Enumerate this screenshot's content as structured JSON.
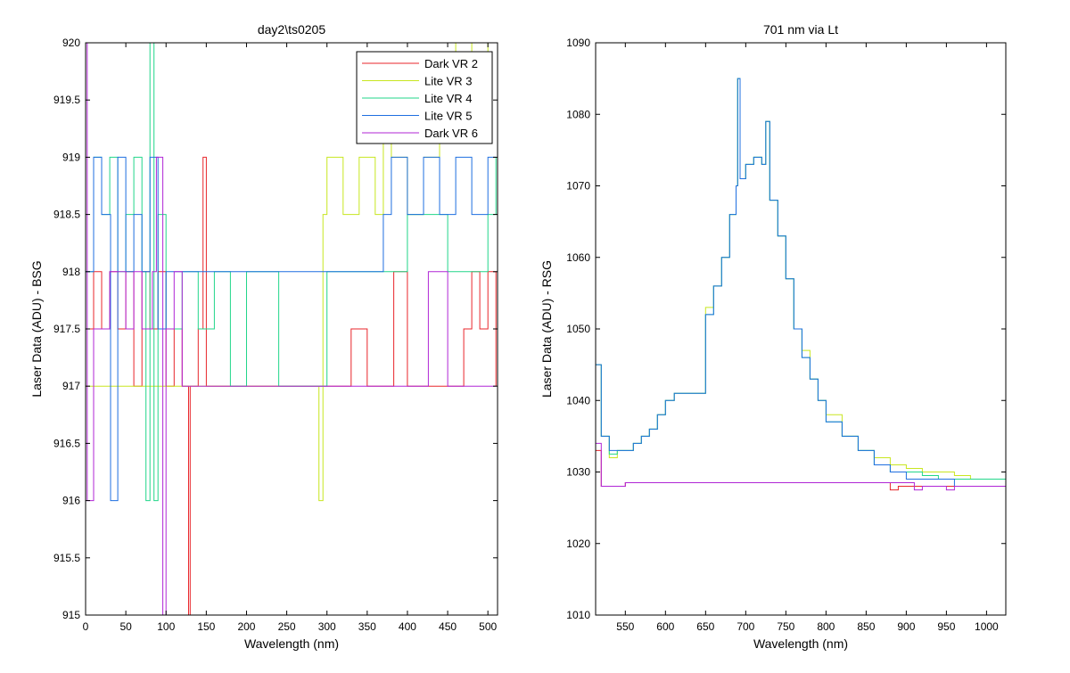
{
  "window": {
    "background": "#ffffff"
  },
  "chart_data": [
    {
      "type": "line",
      "title": "day2\\ts0205",
      "xlabel": "Wavelength (nm)",
      "ylabel": "Laser Data (ADU) - BSG",
      "xlim": [
        0,
        512
      ],
      "ylim": [
        915,
        920
      ],
      "xticks": [
        0,
        50,
        100,
        150,
        200,
        250,
        300,
        350,
        400,
        450,
        500
      ],
      "yticks": [
        915,
        915.5,
        916,
        916.5,
        917,
        917.5,
        918,
        918.5,
        919,
        919.5,
        920
      ],
      "legend_position": "top-right",
      "grid": false,
      "series": [
        {
          "name": "Dark VR 2",
          "color": "#e8262b",
          "x": [
            0,
            10,
            20,
            30,
            40,
            50,
            60,
            70,
            80,
            90,
            100,
            110,
            120,
            128,
            130,
            140,
            146,
            150,
            200,
            250,
            300,
            330,
            350,
            383,
            400,
            450,
            470,
            480,
            490,
            500,
            510
          ],
          "y": [
            917.5,
            918,
            917.5,
            918,
            917.5,
            918,
            917,
            918,
            917.5,
            918,
            917,
            917.5,
            917,
            915,
            917,
            917.5,
            919,
            917,
            917,
            917,
            917,
            917.5,
            917,
            918,
            917,
            917,
            917.5,
            918,
            917.5,
            918,
            917
          ]
        },
        {
          "name": "Lite VR 3",
          "color": "#c8e620",
          "x": [
            0,
            50,
            100,
            150,
            200,
            250,
            280,
            290,
            295,
            300,
            320,
            340,
            360,
            370,
            380,
            400,
            420,
            440,
            460,
            480,
            500,
            510
          ],
          "y": [
            917,
            917,
            917,
            917,
            917,
            917,
            917,
            916,
            918.5,
            919,
            918.5,
            919,
            918.5,
            919.5,
            919,
            918.5,
            919,
            919.5,
            920,
            919.5,
            920,
            920
          ]
        },
        {
          "name": "Lite VR 4",
          "color": "#22d68a",
          "x": [
            0,
            10,
            20,
            30,
            40,
            50,
            60,
            70,
            75,
            80,
            85,
            90,
            100,
            120,
            140,
            160,
            180,
            200,
            240,
            300,
            350,
            400,
            450,
            500,
            510
          ],
          "y": [
            918,
            919,
            918.5,
            919,
            918,
            918.5,
            919,
            918,
            916,
            920,
            916,
            918.5,
            917.5,
            918,
            917.5,
            918,
            917,
            918,
            917,
            918,
            918,
            918.5,
            918,
            918.5,
            919
          ]
        },
        {
          "name": "Lite VR 5",
          "color": "#1f6fe0",
          "x": [
            0,
            10,
            20,
            31,
            40,
            50,
            60,
            70,
            80,
            90,
            100,
            150,
            200,
            250,
            300,
            350,
            370,
            380,
            400,
            420,
            440,
            460,
            480,
            500,
            510
          ],
          "y": [
            918,
            919,
            918.5,
            916,
            919,
            918,
            918.5,
            918,
            919,
            917.5,
            918,
            918,
            918,
            918,
            918,
            918,
            918.5,
            919,
            918.5,
            919,
            918.5,
            919,
            918.5,
            919,
            919
          ]
        },
        {
          "name": "Dark VR 6",
          "color": "#b026d6",
          "x": [
            0,
            2,
            10,
            30,
            50,
            60,
            70,
            83,
            88,
            96,
            100,
            110,
            120,
            150,
            200,
            250,
            300,
            350,
            400,
            426,
            450,
            500,
            510
          ],
          "y": [
            920,
            916,
            917.5,
            918,
            917.5,
            918,
            917.5,
            918,
            919,
            915,
            917.5,
            918,
            917,
            917,
            917,
            917,
            917,
            917,
            917,
            918,
            917,
            917,
            917
          ]
        }
      ]
    },
    {
      "type": "line",
      "title": "701 nm via Lt",
      "xlabel": "Wavelength (nm)",
      "ylabel": "Laser Data (ADU) - RSG",
      "xlim": [
        513,
        1024
      ],
      "ylim": [
        1010,
        1090
      ],
      "xticks": [
        550,
        600,
        650,
        700,
        750,
        800,
        850,
        900,
        950,
        1000
      ],
      "yticks": [
        1010,
        1020,
        1030,
        1040,
        1050,
        1060,
        1070,
        1080,
        1090
      ],
      "grid": false,
      "series": [
        {
          "name": "Dark VR 2",
          "color": "#e8262b",
          "x": [
            513,
            520,
            550,
            600,
            650,
            700,
            750,
            800,
            850,
            880,
            890,
            900,
            950,
            1000,
            1024
          ],
          "y": [
            1033,
            1028,
            1028.5,
            1028.5,
            1028.5,
            1028.5,
            1028.5,
            1028.5,
            1028.5,
            1027.5,
            1028,
            1028,
            1028,
            1028,
            1028
          ]
        },
        {
          "name": "Lite VR 3",
          "color": "#c8e620",
          "x": [
            513,
            520,
            530,
            540,
            550,
            560,
            570,
            580,
            590,
            600,
            611,
            650,
            660,
            670,
            680,
            688,
            690,
            693,
            700,
            710,
            720,
            725,
            730,
            740,
            750,
            760,
            770,
            780,
            790,
            800,
            820,
            840,
            860,
            880,
            900,
            920,
            940,
            960,
            980,
            1000,
            1024
          ],
          "y": [
            1045,
            1035,
            1032,
            1033,
            1033,
            1034,
            1035,
            1036,
            1038,
            1040,
            1041,
            1053,
            1056,
            1060,
            1066,
            1070,
            1085,
            1071,
            1073,
            1074,
            1073,
            1079,
            1068,
            1063,
            1057,
            1050,
            1047,
            1043,
            1040,
            1038,
            1035,
            1033,
            1032,
            1031,
            1030.5,
            1030,
            1030,
            1029.5,
            1029,
            1029,
            1029
          ]
        },
        {
          "name": "Lite VR 4",
          "color": "#22d68a",
          "x": [
            513,
            520,
            530,
            540,
            550,
            560,
            570,
            580,
            590,
            600,
            611,
            650,
            660,
            670,
            680,
            688,
            690,
            693,
            700,
            710,
            720,
            725,
            730,
            740,
            750,
            760,
            770,
            780,
            790,
            800,
            820,
            840,
            860,
            880,
            900,
            920,
            940,
            960,
            980,
            1000,
            1024
          ],
          "y": [
            1045,
            1035,
            1032.5,
            1033,
            1033,
            1034,
            1035,
            1036,
            1038,
            1040,
            1041,
            1052,
            1056,
            1060,
            1066,
            1070,
            1085,
            1071,
            1073,
            1074,
            1073,
            1079,
            1068,
            1063,
            1057,
            1050,
            1046,
            1043,
            1040,
            1037,
            1035,
            1033,
            1031,
            1030,
            1030,
            1029.5,
            1029,
            1029,
            1029,
            1029,
            1028.5
          ]
        },
        {
          "name": "Lite VR 5",
          "color": "#1f6fe0",
          "x": [
            513,
            520,
            530,
            540,
            550,
            560,
            570,
            580,
            590,
            600,
            611,
            650,
            660,
            670,
            680,
            688,
            690,
            693,
            700,
            710,
            720,
            725,
            730,
            740,
            750,
            760,
            770,
            780,
            790,
            800,
            820,
            840,
            860,
            880,
            900,
            920,
            940,
            960,
            980,
            1000,
            1024
          ],
          "y": [
            1045,
            1035,
            1033,
            1033,
            1033,
            1034,
            1035,
            1036,
            1038,
            1040,
            1041,
            1052,
            1056,
            1060,
            1066,
            1070,
            1085,
            1071,
            1073,
            1074,
            1073,
            1079,
            1068,
            1063,
            1057,
            1050,
            1046,
            1043,
            1040,
            1037,
            1035,
            1033,
            1031,
            1030,
            1029,
            1029,
            1029,
            1028,
            1028,
            1028,
            1028
          ]
        },
        {
          "name": "Dark VR 6",
          "color": "#b026d6",
          "x": [
            513,
            520,
            550,
            600,
            650,
            700,
            750,
            800,
            850,
            900,
            910,
            920,
            950,
            960,
            1000,
            1024
          ],
          "y": [
            1034,
            1028,
            1028.5,
            1028.5,
            1028.5,
            1028.5,
            1028.5,
            1028.5,
            1028.5,
            1028.5,
            1027.5,
            1028,
            1027.5,
            1028,
            1028,
            1028
          ]
        }
      ]
    }
  ]
}
